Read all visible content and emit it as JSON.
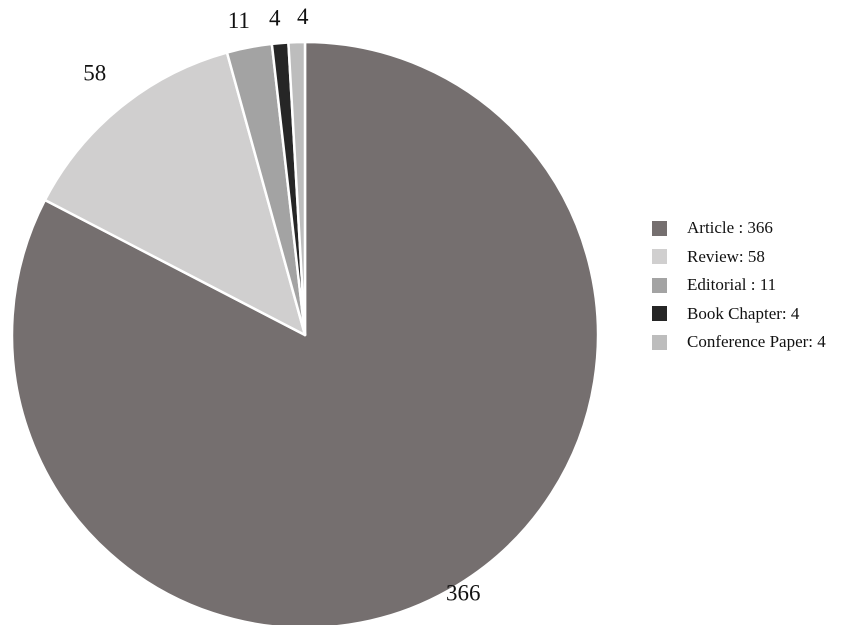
{
  "chart_data": {
    "type": "pie",
    "slices": [
      {
        "label": "Article",
        "value": 366,
        "value_label": "366",
        "legend": "Article : 366",
        "color": "#756f6f"
      },
      {
        "label": "Review",
        "value": 58,
        "value_label": "58",
        "legend": "Review: 58",
        "color": "#d0cfcf"
      },
      {
        "label": "Editorial",
        "value": 11,
        "value_label": "11",
        "legend": "Editorial : 11",
        "color": "#a3a3a3"
      },
      {
        "label": "Book Chapter",
        "value": 4,
        "value_label": "4",
        "legend": "Book Chapter: 4",
        "color": "#262626"
      },
      {
        "label": "Conference Paper",
        "value": 4,
        "value_label": "4",
        "legend": "Conference Paper: 4",
        "color": "#bdbdbd"
      }
    ],
    "start": "12 o'clock",
    "direction": "clockwise",
    "legend_position": "right",
    "data_labels": "outside"
  }
}
